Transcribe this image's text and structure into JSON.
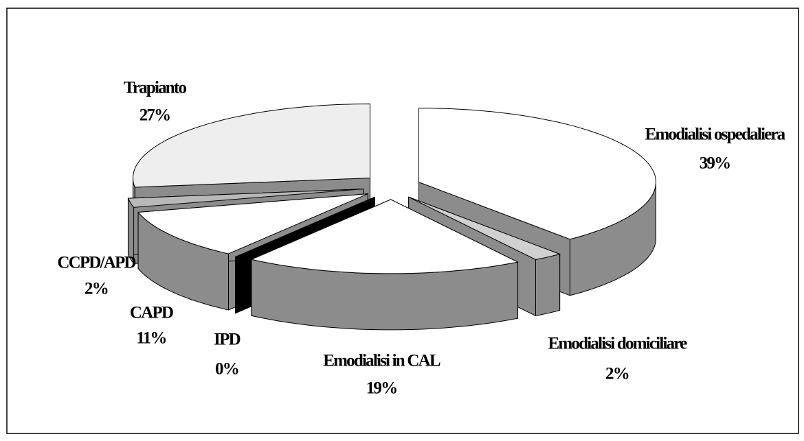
{
  "chart_data": {
    "type": "pie3d",
    "categories": [
      "Emodialisi ospedaliera",
      "Emodialisi domiciliare",
      "Emodialisi in CAL",
      "IPD",
      "CAPD",
      "CCPD/APD",
      "Trapianto"
    ],
    "values": [
      39,
      2,
      19,
      0,
      11,
      2,
      27
    ],
    "value_labels": [
      "39%",
      "2%",
      "19%",
      "0%",
      "11%",
      "2%",
      "27%"
    ],
    "colors": [
      "#ffffff",
      "#d0d0d0",
      "#ffffff",
      "#000000",
      "#ffffff",
      "#b8b8b8",
      "#eeeeee"
    ]
  }
}
